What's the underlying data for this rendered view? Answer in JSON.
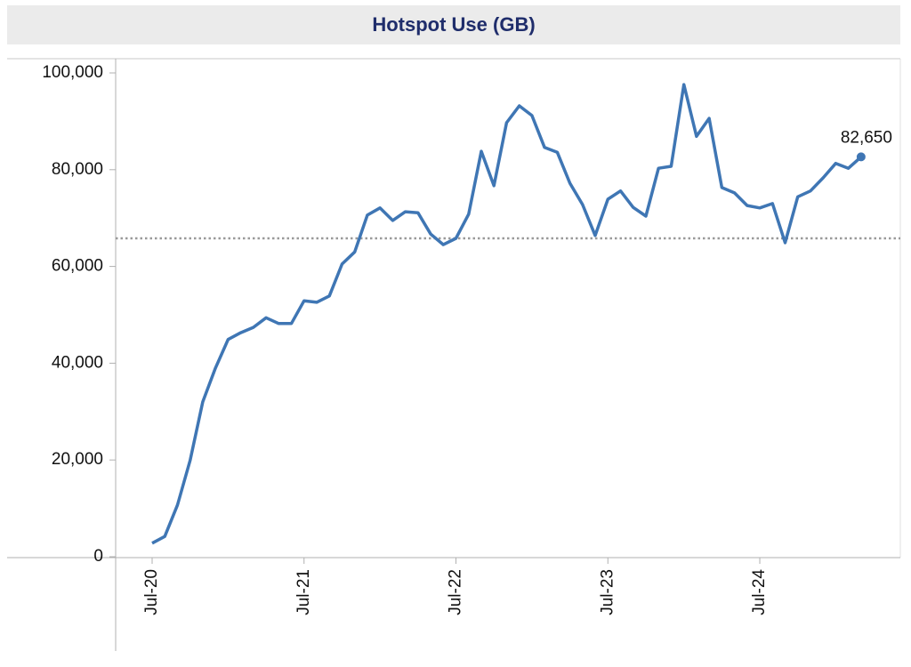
{
  "chart_data": {
    "type": "line",
    "title": "Hotspot Use (GB)",
    "x": [
      "2020-07",
      "2020-08",
      "2020-09",
      "2020-10",
      "2020-11",
      "2020-12",
      "2021-01",
      "2021-02",
      "2021-03",
      "2021-04",
      "2021-05",
      "2021-06",
      "2021-07",
      "2021-08",
      "2021-09",
      "2021-10",
      "2021-11",
      "2021-12",
      "2022-01",
      "2022-02",
      "2022-03",
      "2022-04",
      "2022-05",
      "2022-06",
      "2022-07",
      "2022-08",
      "2022-09",
      "2022-10",
      "2022-11",
      "2022-12",
      "2023-01",
      "2023-02",
      "2023-03",
      "2023-04",
      "2023-05",
      "2023-06",
      "2023-07",
      "2023-08",
      "2023-09",
      "2023-10",
      "2023-11",
      "2023-12",
      "2024-01",
      "2024-02",
      "2024-03",
      "2024-04",
      "2024-05",
      "2024-06",
      "2024-07",
      "2024-08",
      "2024-09",
      "2024-10",
      "2024-11",
      "2024-12",
      "2025-01",
      "2025-02",
      "2025-03"
    ],
    "values": [
      2800,
      4200,
      10700,
      19900,
      32000,
      39000,
      44900,
      46300,
      47400,
      49400,
      48200,
      48200,
      52900,
      52600,
      53900,
      60500,
      63000,
      70600,
      72100,
      69500,
      71300,
      71100,
      66700,
      64500,
      65800,
      70800,
      83800,
      76700,
      89700,
      93200,
      91200,
      84600,
      83600,
      77200,
      72800,
      66400,
      73900,
      75600,
      72200,
      70400,
      80300,
      80700,
      97600,
      86900,
      90600,
      76300,
      75200,
      72600,
      72100,
      73000,
      64900,
      74400,
      75600,
      78300,
      81300,
      80300,
      82650
    ],
    "value_labels": [
      null,
      null,
      null,
      null,
      null,
      null,
      null,
      null,
      null,
      null,
      null,
      null,
      null,
      null,
      null,
      null,
      null,
      null,
      null,
      null,
      null,
      null,
      null,
      null,
      null,
      null,
      null,
      null,
      null,
      null,
      null,
      null,
      null,
      null,
      null,
      null,
      null,
      null,
      null,
      null,
      null,
      null,
      null,
      null,
      null,
      null,
      null,
      null,
      null,
      null,
      null,
      null,
      null,
      null,
      null,
      null,
      "82,650"
    ],
    "color": "#3f76b4",
    "reference_line": 65800,
    "ylim": [
      0,
      100000
    ],
    "yticks": [
      0,
      {
        "value": 20000,
        "label": "20,000"
      },
      {
        "value": 40000,
        "label": "40,000"
      },
      {
        "value": 60000,
        "label": "60,000"
      },
      {
        "value": 80000,
        "label": "80,000"
      },
      {
        "value": 100000,
        "label": "100,000"
      }
    ],
    "xticks": [
      {
        "value": "2020-07",
        "label": "Jul-20"
      },
      {
        "value": "2021-07",
        "label": "Jul-21"
      },
      {
        "value": "2022-07",
        "label": "Jul-22"
      },
      {
        "value": "2023-07",
        "label": "Jul-23"
      },
      {
        "value": "2024-07",
        "label": "Jul-24"
      }
    ]
  }
}
